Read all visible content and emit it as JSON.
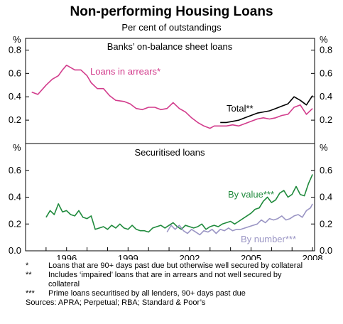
{
  "title": "Non-performing Housing Loans",
  "subtitle": "Per cent of outstandings",
  "colors": {
    "arrears": "#d23c8c",
    "total": "#000000",
    "by_value": "#1f8a3c",
    "by_number": "#9a95c4"
  },
  "chart_data": [
    {
      "type": "line",
      "panel_title": "Banks’ on-balance sheet loans",
      "y_unit": "%",
      "ylim": [
        0,
        0.9
      ],
      "yticks": [
        "0.2",
        "0.4",
        "0.6",
        "0.8"
      ],
      "grid": false,
      "series": [
        {
          "name": "Loans in arrears*",
          "x": [
            1994.3,
            1994.6,
            1995.0,
            1995.3,
            1995.6,
            1995.8,
            1996.0,
            1996.2,
            1996.4,
            1996.7,
            1997.0,
            1997.2,
            1997.5,
            1997.8,
            1998.1,
            1998.4,
            1998.8,
            1999.1,
            1999.4,
            1999.7,
            2000.0,
            2000.3,
            2000.6,
            2000.9,
            2001.2,
            2001.5,
            2001.8,
            2002.1,
            2002.4,
            2002.7,
            2003.0,
            2003.2,
            2003.5,
            2003.8,
            2004.1,
            2004.4,
            2004.7,
            2005.0,
            2005.3,
            2005.6,
            2005.9,
            2006.2,
            2006.5,
            2006.8,
            2007.1,
            2007.4,
            2007.7,
            2008.0
          ],
          "values": [
            0.44,
            0.42,
            0.5,
            0.55,
            0.58,
            0.63,
            0.67,
            0.65,
            0.63,
            0.63,
            0.58,
            0.52,
            0.47,
            0.47,
            0.41,
            0.37,
            0.36,
            0.34,
            0.3,
            0.29,
            0.31,
            0.31,
            0.29,
            0.3,
            0.35,
            0.3,
            0.27,
            0.22,
            0.18,
            0.15,
            0.13,
            0.15,
            0.15,
            0.15,
            0.16,
            0.15,
            0.17,
            0.19,
            0.21,
            0.22,
            0.21,
            0.22,
            0.24,
            0.25,
            0.31,
            0.33,
            0.25,
            0.3
          ]
        },
        {
          "name": "Total**",
          "x": [
            2003.5,
            2003.8,
            2004.1,
            2004.4,
            2004.7,
            2005.0,
            2005.3,
            2005.6,
            2005.9,
            2006.2,
            2006.5,
            2006.8,
            2007.1,
            2007.4,
            2007.7,
            2008.0
          ],
          "values": [
            0.18,
            0.18,
            0.19,
            0.2,
            0.22,
            0.24,
            0.26,
            0.27,
            0.28,
            0.3,
            0.32,
            0.34,
            0.4,
            0.37,
            0.33,
            0.41
          ]
        }
      ]
    },
    {
      "type": "line",
      "panel_title": "Securitised loans",
      "y_unit": "%",
      "ylim": [
        0,
        0.8
      ],
      "yticks": [
        "0.0",
        "0.2",
        "0.4",
        "0.6"
      ],
      "grid": false,
      "x_ticklabels": [
        "1996",
        "1999",
        "2002",
        "2005",
        "2008"
      ],
      "series": [
        {
          "name": "By value***",
          "x": [
            1995.0,
            1995.2,
            1995.4,
            1995.6,
            1995.8,
            1996.0,
            1996.2,
            1996.4,
            1996.6,
            1996.8,
            1997.0,
            1997.2,
            1997.4,
            1997.6,
            1997.8,
            1998.0,
            1998.2,
            1998.4,
            1998.6,
            1998.8,
            1999.0,
            1999.2,
            1999.4,
            1999.6,
            1999.8,
            2000.0,
            2000.2,
            2000.4,
            2000.6,
            2000.8,
            2001.0,
            2001.2,
            2001.4,
            2001.6,
            2001.8,
            2002.0,
            2002.2,
            2002.4,
            2002.6,
            2002.8,
            2003.0,
            2003.2,
            2003.4,
            2003.6,
            2003.8,
            2004.0,
            2004.2,
            2004.4,
            2004.6,
            2004.8,
            2005.0,
            2005.2,
            2005.4,
            2005.6,
            2005.8,
            2006.0,
            2006.2,
            2006.4,
            2006.6,
            2006.8,
            2007.0,
            2007.2,
            2007.4,
            2007.6,
            2007.8,
            2008.0
          ],
          "values": [
            0.25,
            0.3,
            0.27,
            0.35,
            0.29,
            0.3,
            0.27,
            0.26,
            0.3,
            0.25,
            0.24,
            0.26,
            0.16,
            0.17,
            0.18,
            0.16,
            0.19,
            0.17,
            0.2,
            0.17,
            0.16,
            0.19,
            0.16,
            0.15,
            0.15,
            0.14,
            0.17,
            0.18,
            0.19,
            0.17,
            0.19,
            0.21,
            0.18,
            0.16,
            0.19,
            0.18,
            0.17,
            0.18,
            0.2,
            0.16,
            0.18,
            0.19,
            0.18,
            0.2,
            0.21,
            0.22,
            0.2,
            0.22,
            0.24,
            0.26,
            0.28,
            0.31,
            0.32,
            0.37,
            0.4,
            0.36,
            0.38,
            0.43,
            0.45,
            0.4,
            0.42,
            0.48,
            0.42,
            0.41,
            0.5,
            0.57
          ]
        },
        {
          "name": "By number***",
          "x": [
            2000.9,
            2001.1,
            2001.3,
            2001.5,
            2001.7,
            2001.9,
            2002.1,
            2002.3,
            2002.5,
            2002.7,
            2002.9,
            2003.1,
            2003.3,
            2003.5,
            2003.7,
            2003.9,
            2004.1,
            2004.3,
            2004.5,
            2004.7,
            2004.9,
            2005.1,
            2005.3,
            2005.5,
            2005.7,
            2005.9,
            2006.1,
            2006.3,
            2006.5,
            2006.7,
            2006.9,
            2007.1,
            2007.3,
            2007.5,
            2007.7,
            2007.9,
            2008.0
          ],
          "values": [
            0.14,
            0.19,
            0.16,
            0.19,
            0.15,
            0.13,
            0.16,
            0.14,
            0.12,
            0.15,
            0.14,
            0.16,
            0.13,
            0.16,
            0.15,
            0.17,
            0.15,
            0.16,
            0.16,
            0.17,
            0.18,
            0.19,
            0.2,
            0.23,
            0.21,
            0.24,
            0.23,
            0.24,
            0.26,
            0.23,
            0.24,
            0.26,
            0.27,
            0.25,
            0.3,
            0.32,
            0.35
          ]
        }
      ]
    }
  ],
  "notes": [
    {
      "marker": "*",
      "text": "Loans that are 90+ days past due but otherwise well secured by collateral"
    },
    {
      "marker": "**",
      "text": "Includes ‘impaired’ loans that are in arrears and not well secured by collateral"
    },
    {
      "marker": "***",
      "text": "Prime loans securitised by all lenders, 90+ days past due"
    }
  ],
  "sources": "Sources: APRA; Perpetual; RBA; Standard & Poor’s"
}
